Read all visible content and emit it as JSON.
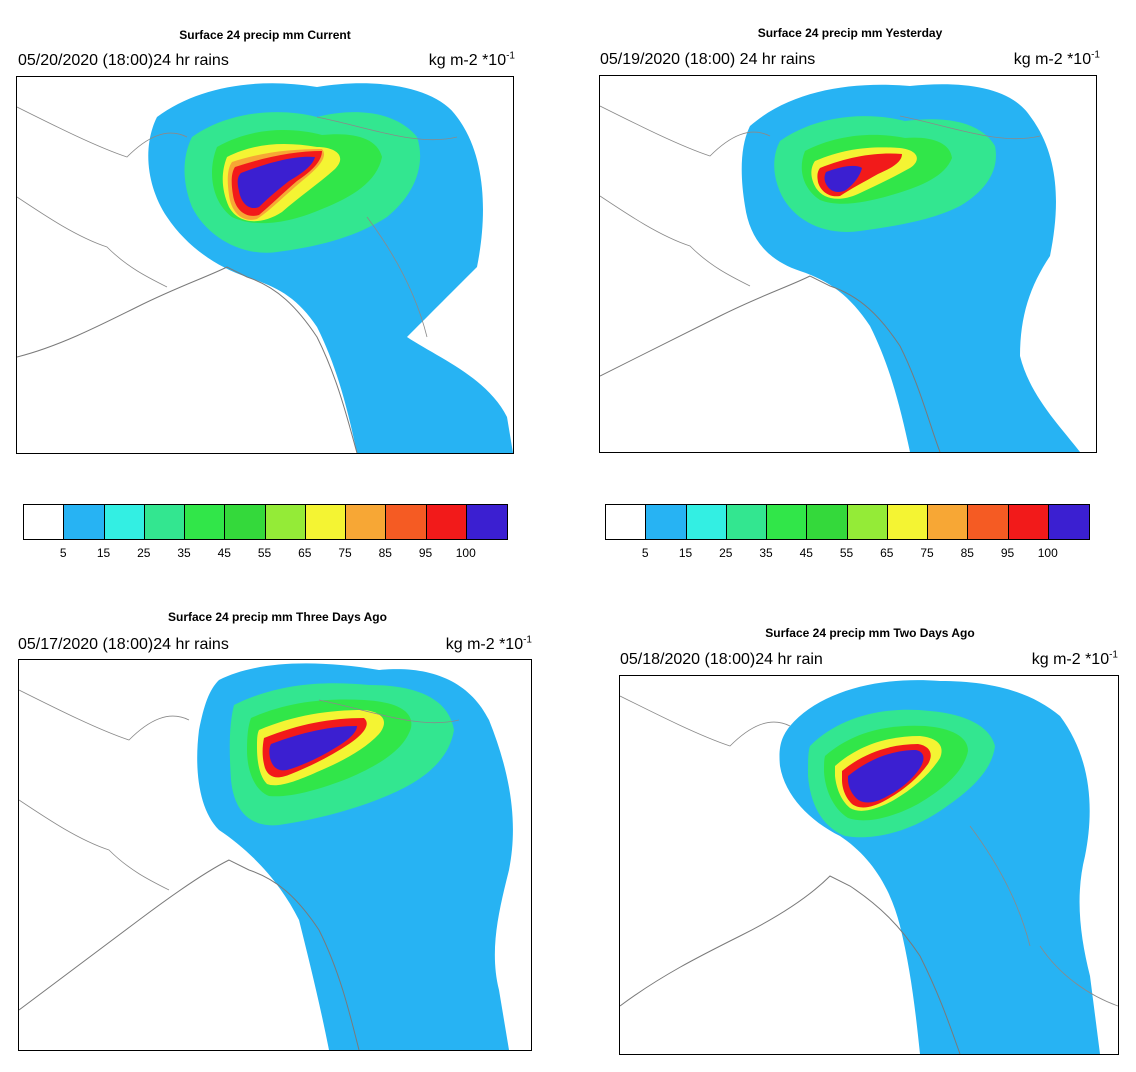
{
  "panels": [
    {
      "id": "p1",
      "title": "Surface 24 precip mm Current",
      "date_label": "05/20/2020 (18:00)24 hr rains",
      "units_base": "kg m-2 *10",
      "units_exp": "-1"
    },
    {
      "id": "p2",
      "title": "Surface 24 precip mm Yesterday",
      "date_label": "05/19/2020 (18:00) 24 hr rains",
      "units_base": "kg m-2 *10",
      "units_exp": "-1"
    },
    {
      "id": "p3",
      "title": "Surface 24 precip mm Three Days Ago",
      "date_label": "05/17/2020 (18:00)24 hr rains",
      "units_base": "kg m-2 *10",
      "units_exp": "-1"
    },
    {
      "id": "p4",
      "title": "Surface 24 precip mm Two Days Ago",
      "date_label": "05/18/2020 (18:00)24 hr rain",
      "units_base": "kg m-2 *10",
      "units_exp": "-1"
    }
  ],
  "colorbar": {
    "colors": [
      "#ffffff",
      "#27b3f3",
      "#33efe3",
      "#33e690",
      "#31e649",
      "#34d93b",
      "#94eb37",
      "#f4f433",
      "#f7a735",
      "#f55b23",
      "#f21a1a",
      "#3b1fd1"
    ],
    "labels": [
      "5",
      "15",
      "25",
      "35",
      "45",
      "55",
      "65",
      "75",
      "85",
      "95",
      "100"
    ]
  },
  "map_colors": {
    "ocean": "#ffffff",
    "boundary": "#8a8a8a",
    "rain_5": "#27b3f3",
    "rain_15": "#33efe3",
    "rain_25": "#33e690",
    "rain_45": "#31e649",
    "rain_65": "#f4f433",
    "rain_85": "#f7a735",
    "rain_95": "#f21a1a",
    "rain_100": "#3b1fd1"
  }
}
